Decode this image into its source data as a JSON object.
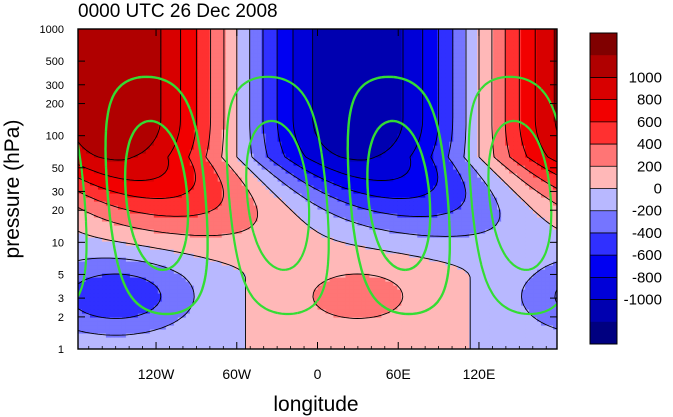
{
  "chart_data": {
    "type": "heatmap",
    "title": "0000 UTC 26 Dec 2008",
    "xlabel": "longitude",
    "ylabel": "pressure (hPa)",
    "x_range_deg": [
      -178,
      178
    ],
    "y_range_hpa": [
      1000,
      1
    ],
    "y_scale": "log",
    "grid": false,
    "xticks": [
      {
        "value": -120,
        "label": "120W"
      },
      {
        "value": -60,
        "label": "60W"
      },
      {
        "value": 0,
        "label": "0"
      },
      {
        "value": 60,
        "label": "60E"
      },
      {
        "value": 120,
        "label": "120E"
      }
    ],
    "yticks": [
      {
        "value": 1,
        "label": "1"
      },
      {
        "value": 2,
        "label": "2"
      },
      {
        "value": 3,
        "label": "3"
      },
      {
        "value": 5,
        "label": "5"
      },
      {
        "value": 10,
        "label": "10"
      },
      {
        "value": 20,
        "label": "20"
      },
      {
        "value": 30,
        "label": "30"
      },
      {
        "value": 50,
        "label": "50"
      },
      {
        "value": 100,
        "label": "100"
      },
      {
        "value": 200,
        "label": "200"
      },
      {
        "value": 300,
        "label": "300"
      },
      {
        "value": 500,
        "label": "500"
      },
      {
        "value": 1000,
        "label": "1000"
      }
    ],
    "colorbar": {
      "placement": "right",
      "labels": [
        "1000",
        "800",
        "600",
        "400",
        "200",
        "0",
        "-200",
        "-400",
        "-600",
        "-800",
        "-1000"
      ],
      "colors": [
        "#800000",
        "#b00000",
        "#d80000",
        "#f20000",
        "#ff3030",
        "#ff7575",
        "#ffb8b8",
        "#b8b8ff",
        "#7575ff",
        "#3030ff",
        "#0000f2",
        "#0000d8",
        "#0000b0",
        "#000080"
      ]
    },
    "field": {
      "description": "wavenumber-1 pattern, amplitude growing with height, westward tilt",
      "upper_max_deg_lon": -150,
      "upper_min_deg_lon": 30,
      "upper_peak_abs": 1200,
      "lower_max_deg_lon": 30,
      "lower_min_deg_lon": -150,
      "lower_peak_abs": 280,
      "zero_line_tilt_deg": 85
    },
    "overlay_contours": {
      "color": "#33dd33",
      "solid": "positive",
      "dashed": "negative"
    }
  }
}
